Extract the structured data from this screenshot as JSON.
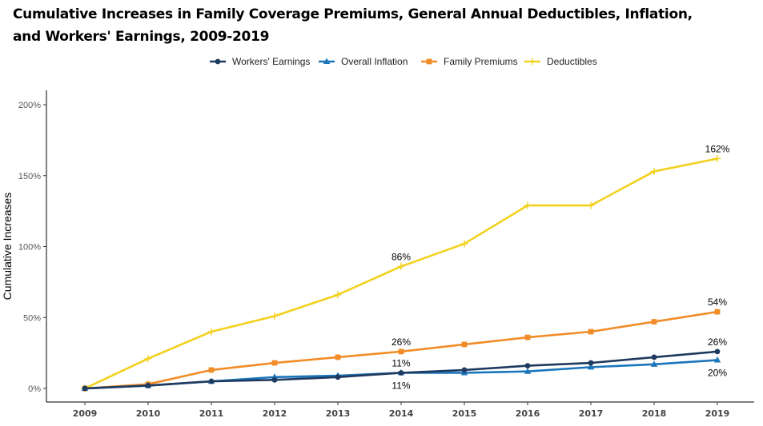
{
  "chart_data": {
    "type": "line",
    "title_line1": "Cumulative Increases in Family Coverage Premiums, General Annual Deductibles, Inflation,",
    "title_line2": "and Workers' Earnings, 2009-2019",
    "ylabel": "Cumulative Increases",
    "xlabel": "",
    "x": [
      "2009",
      "2010",
      "2011",
      "2012",
      "2013",
      "2014",
      "2015",
      "2016",
      "2017",
      "2018",
      "2019"
    ],
    "ylim": [
      0,
      200
    ],
    "yticks": [
      0,
      50,
      100,
      150,
      200
    ],
    "ytick_labels": [
      "0%",
      "50%",
      "100%",
      "150%",
      "200%"
    ],
    "grid": false,
    "legend_position": "top",
    "series": [
      {
        "name": "Workers' Earnings",
        "color": "#1f3a5f",
        "marker": "circle",
        "values": [
          0,
          2,
          5,
          6,
          8,
          11,
          13,
          16,
          18,
          22,
          26
        ]
      },
      {
        "name": "Overall Inflation",
        "color": "#1a75bb",
        "marker": "triangle",
        "values": [
          0,
          2,
          5,
          8,
          9,
          11,
          11,
          12,
          15,
          17,
          20
        ]
      },
      {
        "name": "Family Premiums",
        "color": "#f28c28",
        "marker": "square",
        "values": [
          0,
          3,
          13,
          18,
          22,
          26,
          31,
          36,
          40,
          47,
          54
        ]
      },
      {
        "name": "Deductibles",
        "color": "#f2d11e",
        "marker": "plus",
        "values": [
          0,
          21,
          40,
          51,
          66,
          86,
          102,
          129,
          129,
          153,
          162
        ]
      }
    ],
    "annotations": [
      {
        "text": "86%",
        "x": "2014",
        "series": 3,
        "pos": "above"
      },
      {
        "text": "26%",
        "x": "2014",
        "series": 2,
        "pos": "above"
      },
      {
        "text": "11%",
        "x": "2014",
        "series": 0,
        "pos": "above"
      },
      {
        "text": "11%",
        "x": "2014",
        "series": 1,
        "pos": "below"
      },
      {
        "text": "162%",
        "x": "2019",
        "series": 3,
        "pos": "above"
      },
      {
        "text": "54%",
        "x": "2019",
        "series": 2,
        "pos": "above"
      },
      {
        "text": "26%",
        "x": "2019",
        "series": 0,
        "pos": "above"
      },
      {
        "text": "20%",
        "x": "2019",
        "series": 1,
        "pos": "below"
      }
    ]
  }
}
